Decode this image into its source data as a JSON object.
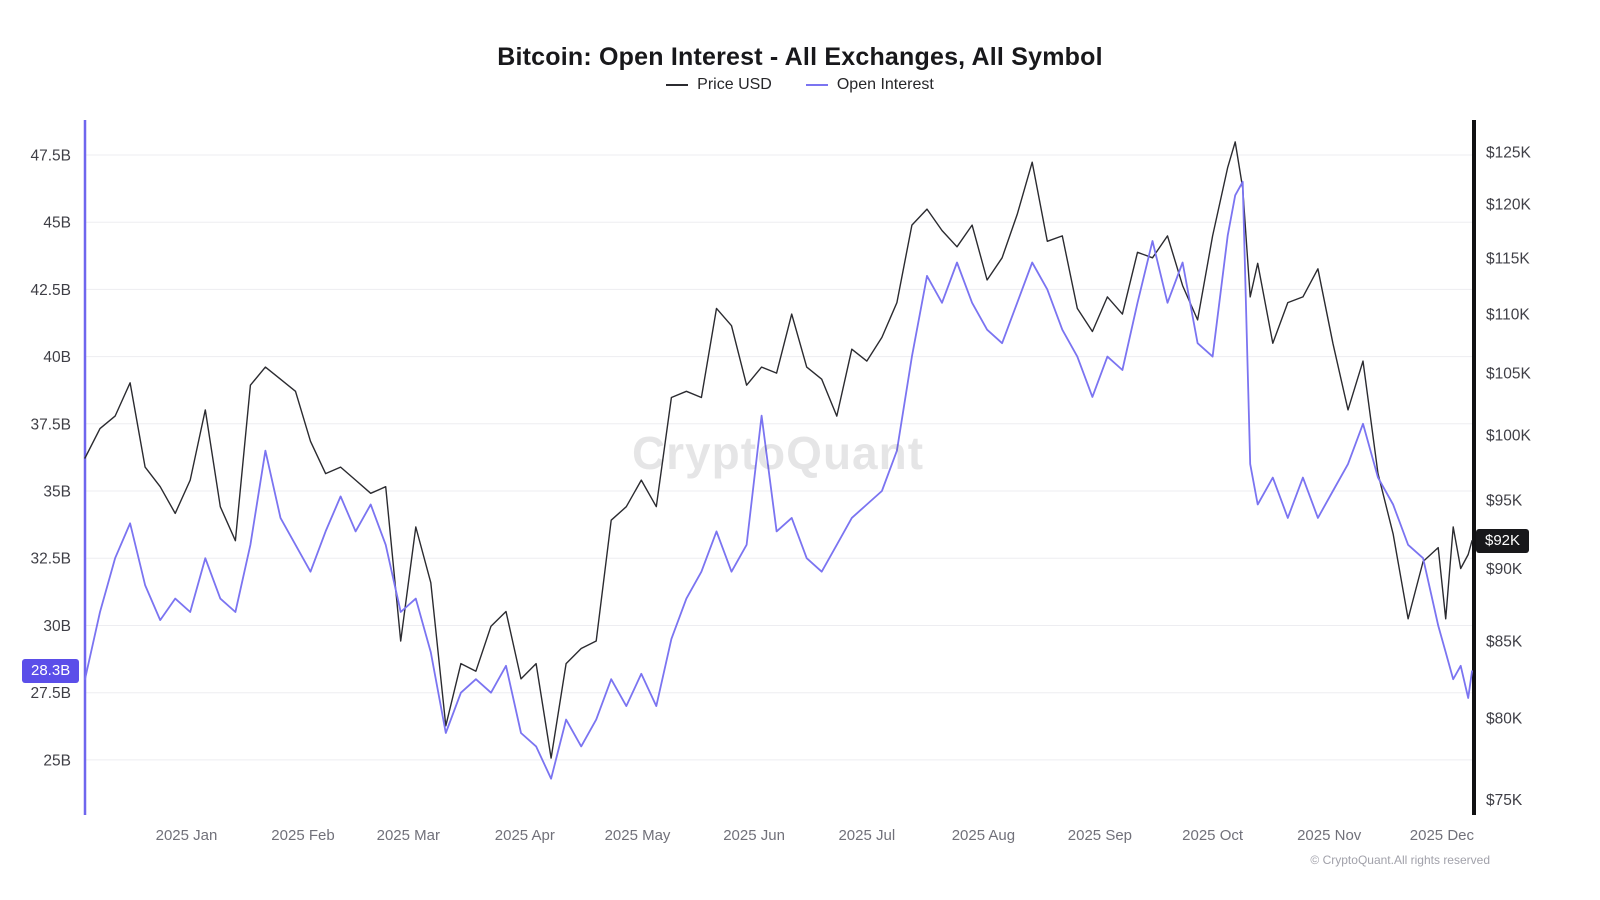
{
  "title": "Bitcoin: Open Interest - All Exchanges, All Symbol",
  "legend": [
    {
      "label": "Price USD",
      "color": "#2b2b30"
    },
    {
      "label": "Open Interest",
      "color": "#7b74f1"
    }
  ],
  "watermark": "CryptoQuant",
  "footer": "© CryptoQuant.All rights reserved",
  "badges": {
    "left": {
      "label": "28.3B",
      "color": "#5b4ee9"
    },
    "right": {
      "label": "$92K",
      "color": "#18181b"
    }
  },
  "chart_data": {
    "type": "line",
    "x": [
      "2024-12-05",
      "2024-12-09",
      "2024-12-13",
      "2024-12-17",
      "2024-12-21",
      "2024-12-25",
      "2024-12-29",
      "2025-01-02",
      "2025-01-06",
      "2025-01-10",
      "2025-01-14",
      "2025-01-18",
      "2025-01-22",
      "2025-01-26",
      "2025-01-30",
      "2025-02-03",
      "2025-02-07",
      "2025-02-11",
      "2025-02-15",
      "2025-02-19",
      "2025-02-23",
      "2025-02-27",
      "2025-03-03",
      "2025-03-07",
      "2025-03-11",
      "2025-03-15",
      "2025-03-19",
      "2025-03-23",
      "2025-03-27",
      "2025-03-31",
      "2025-04-04",
      "2025-04-08",
      "2025-04-12",
      "2025-04-16",
      "2025-04-20",
      "2025-04-24",
      "2025-04-28",
      "2025-05-02",
      "2025-05-06",
      "2025-05-10",
      "2025-05-14",
      "2025-05-18",
      "2025-05-22",
      "2025-05-26",
      "2025-05-30",
      "2025-06-03",
      "2025-06-07",
      "2025-06-11",
      "2025-06-15",
      "2025-06-19",
      "2025-06-23",
      "2025-06-27",
      "2025-07-01",
      "2025-07-05",
      "2025-07-09",
      "2025-07-13",
      "2025-07-17",
      "2025-07-21",
      "2025-07-25",
      "2025-07-29",
      "2025-08-02",
      "2025-08-06",
      "2025-08-10",
      "2025-08-14",
      "2025-08-18",
      "2025-08-22",
      "2025-08-26",
      "2025-08-30",
      "2025-09-03",
      "2025-09-07",
      "2025-09-11",
      "2025-09-15",
      "2025-09-19",
      "2025-09-23",
      "2025-09-27",
      "2025-10-01",
      "2025-10-05",
      "2025-10-07",
      "2025-10-09",
      "2025-10-11",
      "2025-10-13",
      "2025-10-17",
      "2025-10-21",
      "2025-10-25",
      "2025-10-29",
      "2025-11-02",
      "2025-11-06",
      "2025-11-10",
      "2025-11-14",
      "2025-11-18",
      "2025-11-22",
      "2025-11-26",
      "2025-11-30",
      "2025-12-02",
      "2025-12-04",
      "2025-12-06",
      "2025-12-08",
      "2025-12-09"
    ],
    "series": [
      {
        "name": "Price USD",
        "axis": "right",
        "unit": "K USD",
        "color": "#2b2b30",
        "values": [
          98.2,
          100.5,
          101.5,
          104.2,
          97.5,
          96,
          94,
          96.5,
          102,
          94.5,
          92,
          104,
          105.5,
          104.5,
          103.5,
          99.5,
          97,
          97.5,
          96.5,
          95.5,
          96,
          85,
          93,
          89,
          79.5,
          83.5,
          83,
          86,
          87,
          82.5,
          83.5,
          77.5,
          83.5,
          84.5,
          85,
          93.5,
          94.5,
          96.5,
          94.5,
          103,
          103.5,
          103,
          110.5,
          109,
          104,
          105.5,
          105,
          110,
          105.5,
          104.5,
          101.5,
          107,
          106,
          108,
          111,
          118,
          119.5,
          117.5,
          116,
          118,
          113,
          115,
          119,
          124,
          116.5,
          117,
          110.5,
          108.5,
          111.5,
          110,
          115.5,
          115,
          117,
          112.5,
          109.5,
          117,
          123.5,
          126,
          121.5,
          111.5,
          114.5,
          107.5,
          111,
          111.5,
          114,
          107.5,
          102,
          106,
          97,
          92.5,
          86.5,
          90.5,
          91.5,
          86.5,
          93,
          90,
          91,
          92
        ]
      },
      {
        "name": "Open Interest",
        "axis": "left",
        "unit": "B USD",
        "color": "#7b74f1",
        "values": [
          28,
          30.5,
          32.5,
          33.8,
          31.5,
          30.2,
          31,
          30.5,
          32.5,
          31,
          30.5,
          33,
          36.5,
          34,
          33,
          32,
          33.5,
          34.8,
          33.5,
          34.5,
          33,
          30.5,
          31,
          29,
          26,
          27.5,
          28,
          27.5,
          28.5,
          26,
          25.5,
          24.3,
          26.5,
          25.5,
          26.5,
          28,
          27,
          28.2,
          27,
          29.5,
          31,
          32,
          33.5,
          32,
          33,
          37.8,
          33.5,
          34,
          32.5,
          32,
          33,
          34,
          34.5,
          35,
          36.5,
          40,
          43,
          42,
          43.5,
          42,
          41,
          40.5,
          42,
          43.5,
          42.5,
          41,
          40,
          38.5,
          40,
          39.5,
          42,
          44.3,
          42,
          43.5,
          40.5,
          40,
          44.5,
          46,
          46.5,
          36,
          34.5,
          35.5,
          34,
          35.5,
          34,
          35,
          36,
          37.5,
          35.5,
          34.5,
          33,
          32.5,
          30,
          29,
          28,
          28.5,
          27.3,
          28.3
        ]
      }
    ],
    "left_axis": {
      "scale": "linear",
      "min": 22.95,
      "max": 48.8,
      "ticks": [
        "25B",
        "27.5B",
        "30B",
        "32.5B",
        "35B",
        "37.5B",
        "40B",
        "42.5B",
        "45B",
        "47.5B"
      ],
      "tick_values": [
        25,
        27.5,
        30,
        32.5,
        35,
        37.5,
        40,
        42.5,
        45,
        47.5
      ],
      "current": "28.3B"
    },
    "right_axis": {
      "scale": "log",
      "min": 74.1,
      "max": 128.2,
      "ticks": [
        "$75K",
        "$80K",
        "$85K",
        "$90K",
        "$95K",
        "$100K",
        "$105K",
        "$110K",
        "$115K",
        "$120K",
        "$125K"
      ],
      "tick_values": [
        75,
        80,
        85,
        90,
        95,
        100,
        105,
        110,
        115,
        120,
        125
      ],
      "current": "$92K"
    },
    "x_ticks": [
      {
        "label": "2025 Jan",
        "date": "2025-01-01"
      },
      {
        "label": "2025 Feb",
        "date": "2025-02-01"
      },
      {
        "label": "2025 Mar",
        "date": "2025-03-01"
      },
      {
        "label": "2025 Apr",
        "date": "2025-04-01"
      },
      {
        "label": "2025 May",
        "date": "2025-05-01"
      },
      {
        "label": "2025 Jun",
        "date": "2025-06-01"
      },
      {
        "label": "2025 Jul",
        "date": "2025-07-01"
      },
      {
        "label": "2025 Aug",
        "date": "2025-08-01"
      },
      {
        "label": "2025 Sep",
        "date": "2025-09-01"
      },
      {
        "label": "2025 Oct",
        "date": "2025-10-01"
      },
      {
        "label": "2025 Nov",
        "date": "2025-11-01"
      },
      {
        "label": "2025 Dec",
        "date": "2025-12-01"
      }
    ],
    "grid": "horizontal",
    "legend_position": "top-center"
  }
}
